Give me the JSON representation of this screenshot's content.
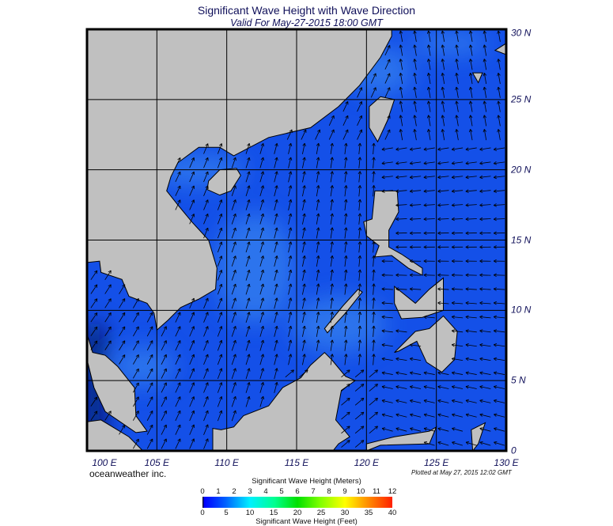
{
  "title": "Significant Wave Height with Wave Direction",
  "subtitle": "Valid For May-27-2015 18:00 GMT",
  "map": {
    "lon_range": [
      100,
      130
    ],
    "lat_range": [
      0,
      30
    ],
    "lon_labels": [
      "100 E",
      "105 E",
      "110 E",
      "115 E",
      "120 E",
      "125 E",
      "130 E"
    ],
    "lat_labels": [
      "30 N",
      "25 N",
      "20 N",
      "15 N",
      "10 N",
      "5 N",
      "0"
    ],
    "colors": {
      "land": "#c0c0c0",
      "ocean": "#1450e8",
      "ocean_light": "#3c8cf0",
      "grid": "#000000",
      "arrow": "#000000"
    }
  },
  "brand": "oceanweather inc.",
  "plotted": "Plotted at May 27, 2015 12:02 GMT",
  "colorbar": {
    "meters_label": "Significant Wave Height (Meters)",
    "feet_label": "Significant Wave Height (Feet)",
    "meters_ticks": [
      "0",
      "1",
      "2",
      "3",
      "4",
      "5",
      "6",
      "7",
      "8",
      "9",
      "10",
      "11",
      "12"
    ],
    "feet_ticks": [
      "0",
      "5",
      "10",
      "15",
      "20",
      "25",
      "30",
      "35",
      "40"
    ]
  }
}
